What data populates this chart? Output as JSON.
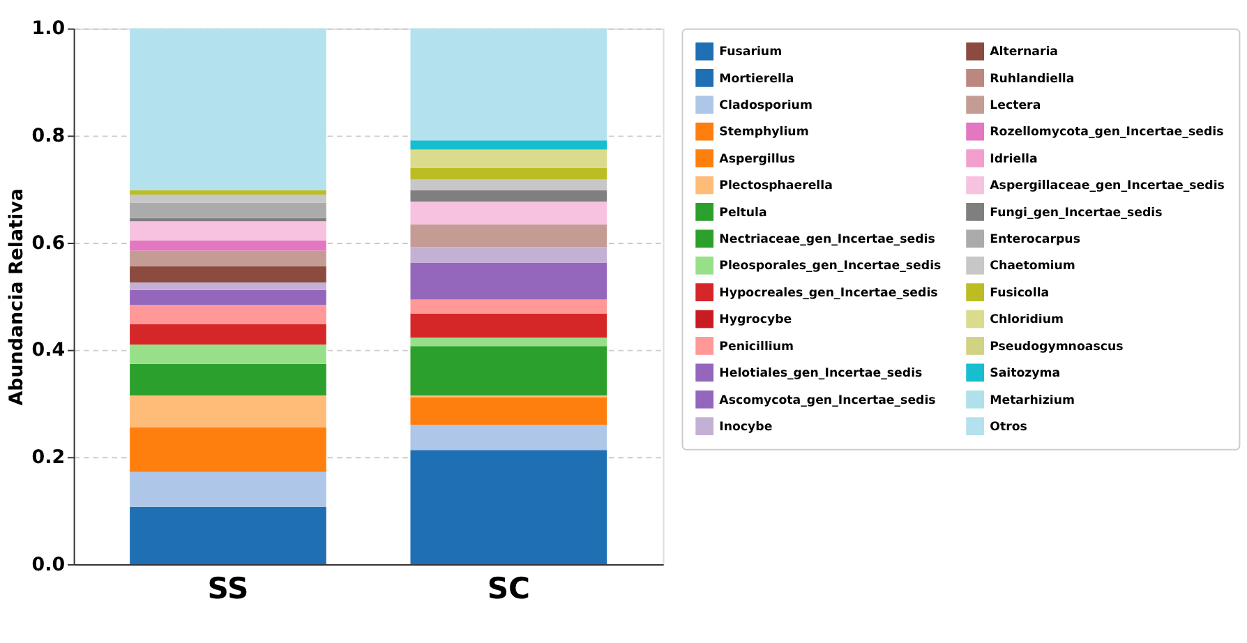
{
  "chart_data": {
    "type": "bar",
    "stacked": true,
    "ylabel": "Abundancia Relativa",
    "categories": [
      "SS",
      "SC"
    ],
    "ylim": [
      0,
      1
    ],
    "yticks": [
      {
        "value": 0,
        "label": "0.0"
      },
      {
        "value": 0.2,
        "label": "0.2"
      },
      {
        "value": 0.4,
        "label": "0.4"
      },
      {
        "value": 0.6,
        "label": "0.6"
      },
      {
        "value": 0.8,
        "label": "0.8"
      },
      {
        "value": 1,
        "label": "1.0"
      }
    ],
    "grid": "y",
    "legend": "right",
    "series": [
      {
        "name": "Fusarium",
        "color": "#1f6fb4",
        "values": [
          0.107,
          0.213
        ]
      },
      {
        "name": "Mortierella",
        "color": "#1f6fb4",
        "values": [
          null,
          null
        ]
      },
      {
        "name": "Cladosporium",
        "color": "#aec7e8",
        "values": [
          0.065,
          0.047
        ]
      },
      {
        "name": "Stemphylium",
        "color": "#ff7f0e",
        "values": [
          0.083,
          0.051
        ]
      },
      {
        "name": "Aspergillus",
        "color": "#ff7f0e",
        "values": [
          null,
          null
        ]
      },
      {
        "name": "Plectosphaerella",
        "color": "#ffbb78",
        "values": [
          0.06,
          0.004
        ]
      },
      {
        "name": "Peltula",
        "color": "#2ca02c",
        "values": [
          0.059,
          0.092
        ]
      },
      {
        "name": "Nectriaceae_gen_Incertae_sedis",
        "color": "#2ca02c",
        "values": [
          null,
          null
        ]
      },
      {
        "name": "Pleosporales_gen_Incertae_sedis",
        "color": "#98df8a",
        "values": [
          0.036,
          0.016
        ]
      },
      {
        "name": "Hypocreales_gen_Incertae_sedis",
        "color": "#d62728",
        "values": [
          0.038,
          0.045
        ]
      },
      {
        "name": "Hygrocybe",
        "color": "#c91c22",
        "values": [
          null,
          null
        ]
      },
      {
        "name": "Penicillium",
        "color": "#ff9896",
        "values": [
          0.036,
          0.026
        ]
      },
      {
        "name": "Helotiales_gen_Incertae_sedis",
        "color": "#9467bd",
        "values": [
          0.028,
          0.069
        ]
      },
      {
        "name": "Ascomycota_gen_Incertae_sedis",
        "color": "#9467bd",
        "values": [
          null,
          null
        ]
      },
      {
        "name": "Inocybe",
        "color": "#c5b0d5",
        "values": [
          0.014,
          0.029
        ]
      },
      {
        "name": "Alternaria",
        "color": "#8c4b3f",
        "values": [
          0.03,
          null
        ]
      },
      {
        "name": "Ruhlandiella",
        "color": "#bc877e",
        "values": [
          null,
          null
        ]
      },
      {
        "name": "Lectera",
        "color": "#c49c94",
        "values": [
          0.029,
          0.042
        ]
      },
      {
        "name": "Rozellomycota_gen_Incertae_sedis",
        "color": "#e377c2",
        "values": [
          0.019,
          null
        ]
      },
      {
        "name": "Idriella",
        "color": "#f29fcf",
        "values": [
          null,
          null
        ]
      },
      {
        "name": "Aspergillaceae_gen_Incertae_sedis",
        "color": "#f7c2df",
        "values": [
          0.036,
          0.043
        ]
      },
      {
        "name": "Fungi_gen_Incertae_sedis",
        "color": "#7f7f7f",
        "values": [
          0.006,
          0.021
        ]
      },
      {
        "name": "Enterocarpus",
        "color": "#ababab",
        "values": [
          0.029,
          null
        ]
      },
      {
        "name": "Chaetomium",
        "color": "#c7c7c7",
        "values": [
          0.015,
          0.02
        ]
      },
      {
        "name": "Fusicolla",
        "color": "#bcbd22",
        "values": [
          0.008,
          0.022
        ]
      },
      {
        "name": "Chloridium",
        "color": "#dbdb8d",
        "values": [
          null,
          0.034
        ]
      },
      {
        "name": "Pseudogymnoascus",
        "color": "#d2d284",
        "values": [
          null,
          null
        ]
      },
      {
        "name": "Saitozyma",
        "color": "#17becf",
        "values": [
          null,
          0.017
        ]
      },
      {
        "name": "Metarhizium",
        "color": "#b0e0ea",
        "values": [
          null,
          null
        ]
      },
      {
        "name": "Otros",
        "color": "#b3e2ee",
        "values": [
          0.302,
          0.209
        ]
      }
    ]
  }
}
